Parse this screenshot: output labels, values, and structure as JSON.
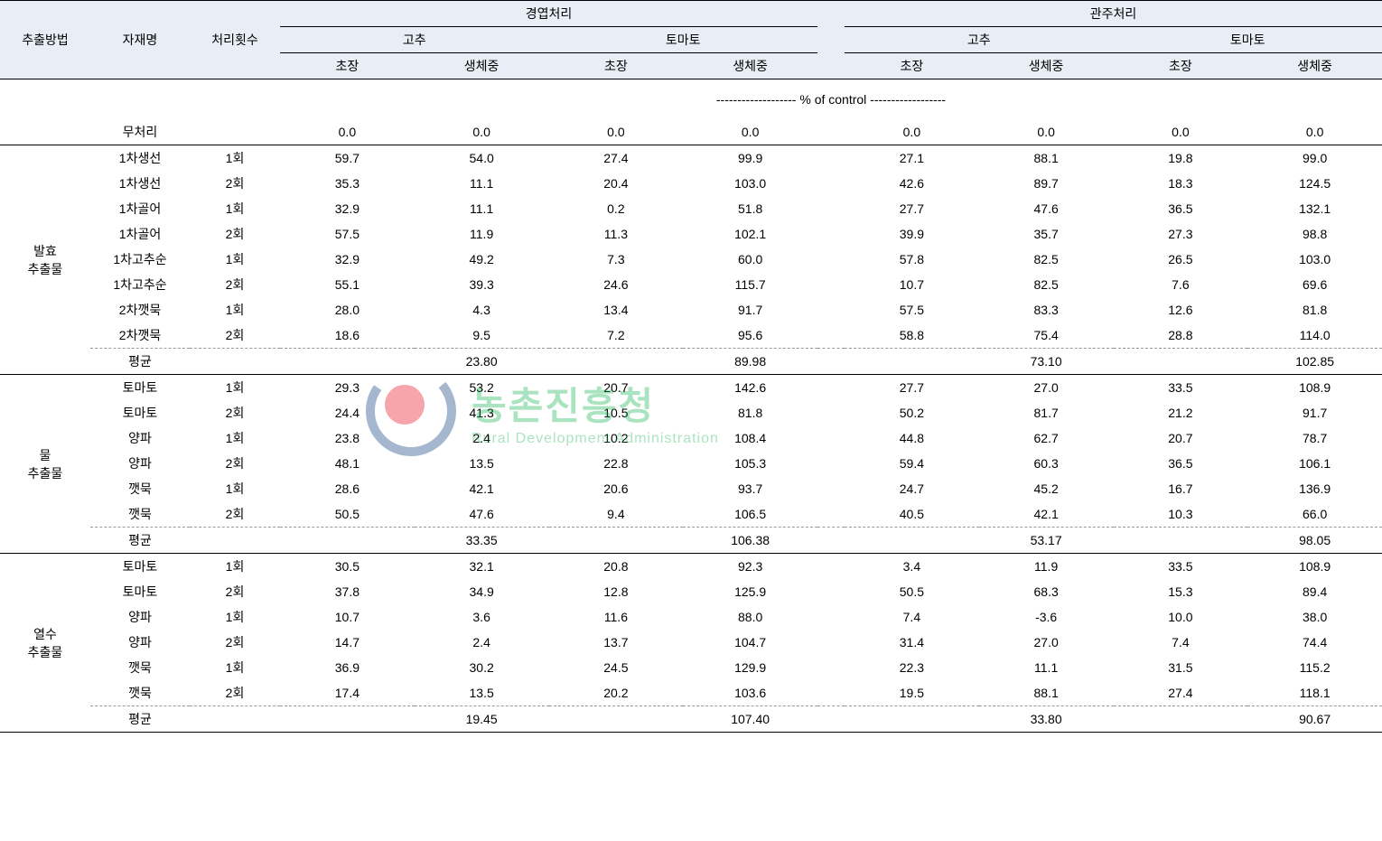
{
  "header": {
    "method": "추출방법",
    "material": "자재명",
    "count": "처리횟수",
    "group1": "경엽처리",
    "group2": "관주처리",
    "subA": "고추",
    "subB": "토마토",
    "m1": "초장",
    "m2": "생체중"
  },
  "control_label": "------------------- % of control ------------------",
  "untreated_label": "무처리",
  "avg_label": "평균",
  "sections": [
    {
      "method": "발효\n추출물",
      "rows": [
        {
          "mat": "1차생선",
          "cnt": "1회",
          "v": [
            59.7,
            54.0,
            27.4,
            99.9,
            27.1,
            88.1,
            19.8,
            99.0
          ]
        },
        {
          "mat": "1차생선",
          "cnt": "2회",
          "v": [
            35.3,
            11.1,
            20.4,
            103.0,
            42.6,
            89.7,
            18.3,
            124.5
          ]
        },
        {
          "mat": "1차골어",
          "cnt": "1회",
          "v": [
            32.9,
            11.1,
            0.2,
            51.8,
            27.7,
            47.6,
            36.5,
            132.1
          ]
        },
        {
          "mat": "1차골어",
          "cnt": "2회",
          "v": [
            57.5,
            11.9,
            11.3,
            102.1,
            39.9,
            35.7,
            27.3,
            98.8
          ]
        },
        {
          "mat": "1차고추순",
          "cnt": "1회",
          "v": [
            32.9,
            49.2,
            7.3,
            60.0,
            57.8,
            82.5,
            26.5,
            103.0
          ]
        },
        {
          "mat": "1차고추순",
          "cnt": "2회",
          "v": [
            55.1,
            39.3,
            24.6,
            115.7,
            10.7,
            82.5,
            7.6,
            69.6
          ]
        },
        {
          "mat": "2차깻묵",
          "cnt": "1회",
          "v": [
            28.0,
            4.3,
            13.4,
            91.7,
            57.5,
            83.3,
            12.6,
            81.8
          ]
        },
        {
          "mat": "2차깻묵",
          "cnt": "2회",
          "v": [
            18.6,
            9.5,
            7.2,
            95.6,
            58.8,
            75.4,
            28.8,
            114.0
          ]
        }
      ],
      "avg": [
        "",
        "23.80",
        "",
        "89.98",
        "",
        "73.10",
        "",
        "102.85"
      ]
    },
    {
      "method": "물\n추출물",
      "rows": [
        {
          "mat": "토마토",
          "cnt": "1회",
          "v": [
            29.3,
            53.2,
            20.7,
            142.6,
            27.7,
            27.0,
            33.5,
            108.9
          ]
        },
        {
          "mat": "토마토",
          "cnt": "2회",
          "v": [
            24.4,
            41.3,
            10.5,
            81.8,
            50.2,
            81.7,
            21.2,
            91.7
          ]
        },
        {
          "mat": "양파",
          "cnt": "1회",
          "v": [
            23.8,
            2.4,
            10.2,
            108.4,
            44.8,
            62.7,
            20.7,
            78.7
          ]
        },
        {
          "mat": "양파",
          "cnt": "2회",
          "v": [
            48.1,
            13.5,
            22.8,
            105.3,
            59.4,
            60.3,
            36.5,
            106.1
          ]
        },
        {
          "mat": "깻묵",
          "cnt": "1회",
          "v": [
            28.6,
            42.1,
            20.6,
            93.7,
            24.7,
            45.2,
            16.7,
            136.9
          ]
        },
        {
          "mat": "깻묵",
          "cnt": "2회",
          "v": [
            50.5,
            47.6,
            9.4,
            106.5,
            40.5,
            42.1,
            10.3,
            66.0
          ]
        }
      ],
      "avg": [
        "",
        "33.35",
        "",
        "106.38",
        "",
        "53.17",
        "",
        "98.05"
      ]
    },
    {
      "method": "열수\n추출물",
      "rows": [
        {
          "mat": "토마토",
          "cnt": "1회",
          "v": [
            30.5,
            32.1,
            20.8,
            92.3,
            3.4,
            11.9,
            33.5,
            108.9
          ]
        },
        {
          "mat": "토마토",
          "cnt": "2회",
          "v": [
            37.8,
            34.9,
            12.8,
            125.9,
            50.5,
            68.3,
            15.3,
            89.4
          ]
        },
        {
          "mat": "양파",
          "cnt": "1회",
          "v": [
            10.7,
            3.6,
            11.6,
            88.0,
            7.4,
            -3.6,
            10.0,
            38.0
          ]
        },
        {
          "mat": "양파",
          "cnt": "2회",
          "v": [
            14.7,
            2.4,
            13.7,
            104.7,
            31.4,
            27.0,
            7.4,
            74.4
          ]
        },
        {
          "mat": "깻묵",
          "cnt": "1회",
          "v": [
            36.9,
            30.2,
            24.5,
            129.9,
            22.3,
            11.1,
            31.5,
            115.2
          ]
        },
        {
          "mat": "깻묵",
          "cnt": "2회",
          "v": [
            17.4,
            13.5,
            20.2,
            103.6,
            19.5,
            88.1,
            27.4,
            118.1
          ]
        }
      ],
      "avg": [
        "",
        "19.45",
        "",
        "107.40",
        "",
        "33.80",
        "",
        "90.67"
      ]
    }
  ],
  "untreated": [
    0.0,
    0.0,
    0.0,
    0.0,
    0.0,
    0.0,
    0.0,
    0.0
  ],
  "colors": {
    "header_bg": "#e8eef5",
    "line": "#000000",
    "dash": "#999999",
    "wm_green": "#0db14b",
    "wm_red": "#e60012",
    "wm_blue": "#003478"
  },
  "watermark": {
    "kr": "농촌진흥청",
    "en": "Rural Development Administration"
  }
}
